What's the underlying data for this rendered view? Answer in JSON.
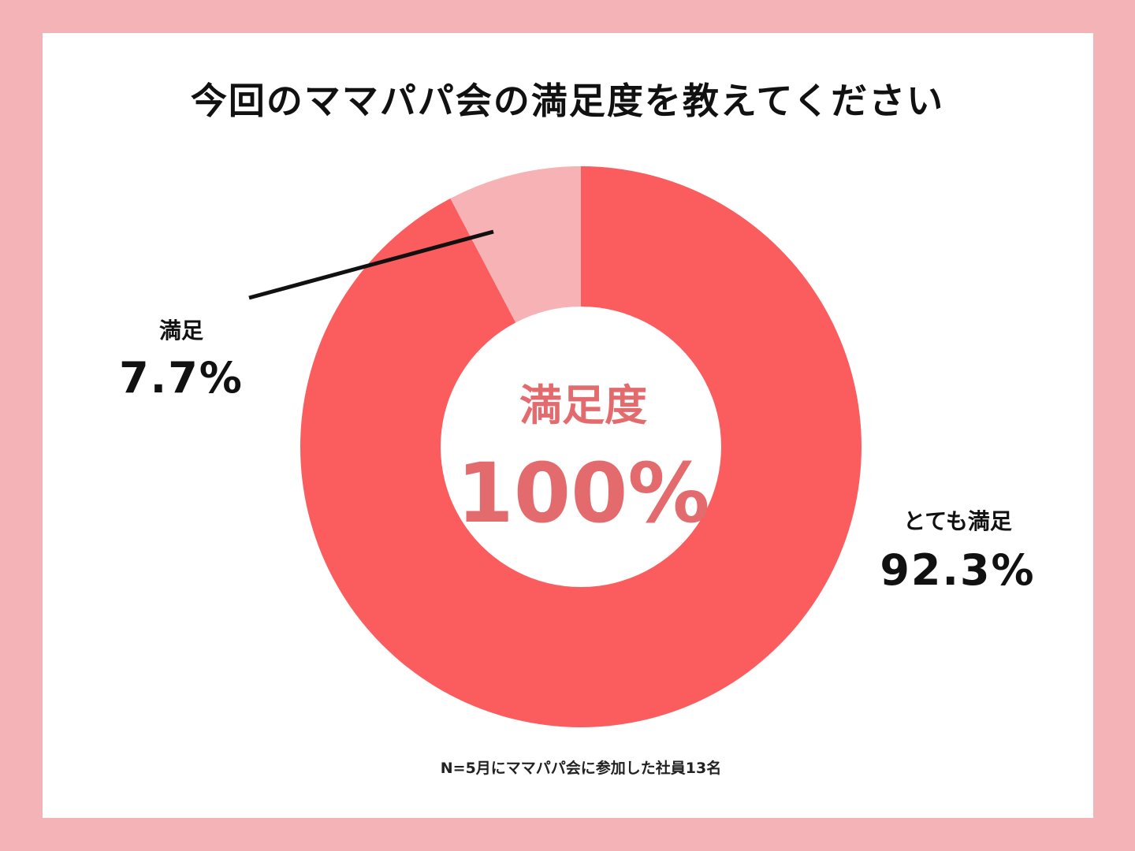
{
  "colors": {
    "background": "#f4b3b6",
    "very_satisfied": "#fb5d5f",
    "satisfied": "#f6b2b4",
    "center_text": "#e36b6e"
  },
  "chart_data": {
    "type": "pie",
    "title": "今回のママパパ会の満足度を教えてください",
    "center_label": "満足度",
    "center_value": "100%",
    "slices": [
      {
        "label": "とても満足",
        "value": 92.3,
        "display": "92.3%",
        "color": "#fb5d5f"
      },
      {
        "label": "満足",
        "value": 7.7,
        "display": "7.7%",
        "color": "#f6b2b4"
      }
    ],
    "note": "N=5月にママパパ会に参加した社員13名"
  }
}
